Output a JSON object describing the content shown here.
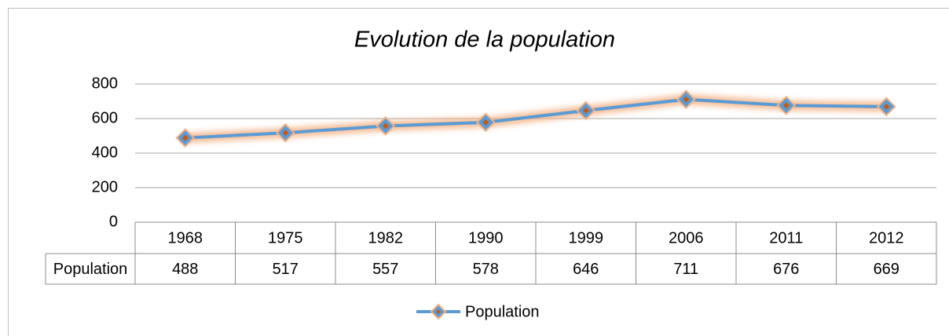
{
  "chart_data": {
    "type": "line",
    "title": "Evolution de la population",
    "categories": [
      "1968",
      "1975",
      "1982",
      "1990",
      "1999",
      "2006",
      "2011",
      "2012"
    ],
    "series": [
      {
        "name": "Population",
        "color": "#5b9bd5",
        "values": [
          488,
          517,
          557,
          578,
          646,
          711,
          676,
          669
        ]
      }
    ],
    "ylim": [
      0,
      800
    ],
    "yticks": [
      0,
      200,
      400,
      600,
      800
    ],
    "grid": true,
    "legend": "bottom"
  }
}
